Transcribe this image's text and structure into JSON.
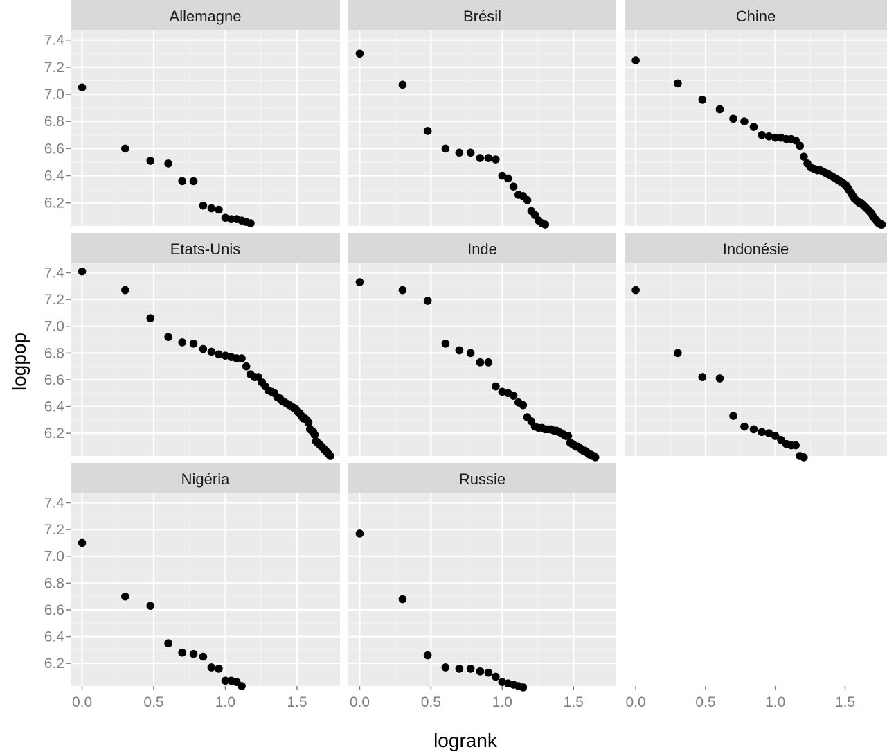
{
  "chart_data": {
    "type": "scatter",
    "layout": "facet-grid",
    "xlabel": "logrank",
    "ylabel": "logpop",
    "xlim": [
      -0.08,
      1.8
    ],
    "ylim": [
      6.03,
      7.47
    ],
    "x_ticks": [
      0.0,
      0.5,
      1.0,
      1.5
    ],
    "x_tick_labels": [
      "0.0",
      "0.5",
      "1.0",
      "1.5"
    ],
    "y_ticks": [
      6.2,
      6.4,
      6.6,
      6.8,
      7.0,
      7.2,
      7.4
    ],
    "y_tick_labels": [
      "6.2",
      "6.4",
      "6.6",
      "6.8",
      "7.0",
      "7.2",
      "7.4"
    ],
    "grid": true,
    "colors": {
      "panel_bg": "#ebebeb",
      "strip_bg": "#d9d9d9",
      "grid_major": "#ffffff",
      "point": "#000000"
    },
    "facets": [
      {
        "name": "Allemagne",
        "points": [
          [
            0.0,
            7.05
          ],
          [
            0.301,
            6.6
          ],
          [
            0.477,
            6.51
          ],
          [
            0.602,
            6.49
          ],
          [
            0.699,
            6.36
          ],
          [
            0.778,
            6.36
          ],
          [
            0.845,
            6.18
          ],
          [
            0.903,
            6.16
          ],
          [
            0.954,
            6.15
          ],
          [
            1.0,
            6.09
          ],
          [
            1.041,
            6.08
          ],
          [
            1.079,
            6.08
          ],
          [
            1.114,
            6.07
          ],
          [
            1.146,
            6.06
          ],
          [
            1.176,
            6.05
          ]
        ]
      },
      {
        "name": "Brésil",
        "points": [
          [
            0.0,
            7.3
          ],
          [
            0.301,
            7.07
          ],
          [
            0.477,
            6.73
          ],
          [
            0.602,
            6.6
          ],
          [
            0.699,
            6.57
          ],
          [
            0.778,
            6.57
          ],
          [
            0.845,
            6.53
          ],
          [
            0.903,
            6.53
          ],
          [
            0.954,
            6.52
          ],
          [
            1.0,
            6.4
          ],
          [
            1.041,
            6.38
          ],
          [
            1.079,
            6.32
          ],
          [
            1.114,
            6.26
          ],
          [
            1.146,
            6.25
          ],
          [
            1.176,
            6.22
          ],
          [
            1.204,
            6.14
          ],
          [
            1.23,
            6.11
          ],
          [
            1.255,
            6.07
          ],
          [
            1.279,
            6.05
          ],
          [
            1.301,
            6.04
          ]
        ]
      },
      {
        "name": "Chine",
        "points": [
          [
            0.0,
            7.25
          ],
          [
            0.301,
            7.08
          ],
          [
            0.477,
            6.96
          ],
          [
            0.602,
            6.89
          ],
          [
            0.699,
            6.82
          ],
          [
            0.778,
            6.8
          ],
          [
            0.845,
            6.76
          ],
          [
            0.903,
            6.7
          ],
          [
            0.954,
            6.69
          ],
          [
            1.0,
            6.68
          ],
          [
            1.041,
            6.68
          ],
          [
            1.079,
            6.67
          ],
          [
            1.114,
            6.67
          ],
          [
            1.146,
            6.66
          ],
          [
            1.176,
            6.62
          ],
          [
            1.204,
            6.54
          ],
          [
            1.23,
            6.49
          ],
          [
            1.255,
            6.46
          ],
          [
            1.279,
            6.45
          ],
          [
            1.301,
            6.44
          ],
          [
            1.322,
            6.44
          ],
          [
            1.342,
            6.43
          ],
          [
            1.362,
            6.42
          ],
          [
            1.38,
            6.41
          ],
          [
            1.398,
            6.4
          ],
          [
            1.415,
            6.39
          ],
          [
            1.431,
            6.38
          ],
          [
            1.447,
            6.37
          ],
          [
            1.462,
            6.36
          ],
          [
            1.477,
            6.35
          ],
          [
            1.491,
            6.34
          ],
          [
            1.505,
            6.33
          ],
          [
            1.519,
            6.31
          ],
          [
            1.531,
            6.29
          ],
          [
            1.544,
            6.27
          ],
          [
            1.556,
            6.25
          ],
          [
            1.568,
            6.23
          ],
          [
            1.58,
            6.22
          ],
          [
            1.591,
            6.21
          ],
          [
            1.602,
            6.2
          ],
          [
            1.613,
            6.2
          ],
          [
            1.623,
            6.19
          ],
          [
            1.633,
            6.18
          ],
          [
            1.643,
            6.17
          ],
          [
            1.653,
            6.16
          ],
          [
            1.663,
            6.15
          ],
          [
            1.672,
            6.14
          ],
          [
            1.681,
            6.13
          ],
          [
            1.69,
            6.12
          ],
          [
            1.699,
            6.1
          ],
          [
            1.708,
            6.09
          ],
          [
            1.716,
            6.08
          ],
          [
            1.724,
            6.07
          ],
          [
            1.732,
            6.06
          ],
          [
            1.74,
            6.05
          ],
          [
            1.748,
            6.05
          ],
          [
            1.756,
            6.04
          ],
          [
            1.763,
            6.04
          ]
        ]
      },
      {
        "name": "Etats-Unis",
        "points": [
          [
            0.0,
            7.41
          ],
          [
            0.301,
            7.27
          ],
          [
            0.477,
            7.06
          ],
          [
            0.602,
            6.92
          ],
          [
            0.699,
            6.88
          ],
          [
            0.778,
            6.87
          ],
          [
            0.845,
            6.83
          ],
          [
            0.903,
            6.81
          ],
          [
            0.954,
            6.79
          ],
          [
            1.0,
            6.78
          ],
          [
            1.041,
            6.77
          ],
          [
            1.079,
            6.76
          ],
          [
            1.114,
            6.76
          ],
          [
            1.146,
            6.7
          ],
          [
            1.176,
            6.64
          ],
          [
            1.204,
            6.62
          ],
          [
            1.23,
            6.62
          ],
          [
            1.255,
            6.58
          ],
          [
            1.279,
            6.55
          ],
          [
            1.301,
            6.52
          ],
          [
            1.322,
            6.51
          ],
          [
            1.342,
            6.5
          ],
          [
            1.362,
            6.47
          ],
          [
            1.38,
            6.46
          ],
          [
            1.398,
            6.44
          ],
          [
            1.415,
            6.43
          ],
          [
            1.431,
            6.42
          ],
          [
            1.447,
            6.41
          ],
          [
            1.462,
            6.4
          ],
          [
            1.477,
            6.39
          ],
          [
            1.491,
            6.38
          ],
          [
            1.505,
            6.36
          ],
          [
            1.519,
            6.35
          ],
          [
            1.531,
            6.33
          ],
          [
            1.544,
            6.31
          ],
          [
            1.556,
            6.31
          ],
          [
            1.568,
            6.3
          ],
          [
            1.58,
            6.28
          ],
          [
            1.591,
            6.23
          ],
          [
            1.602,
            6.22
          ],
          [
            1.613,
            6.21
          ],
          [
            1.623,
            6.19
          ],
          [
            1.633,
            6.14
          ],
          [
            1.643,
            6.13
          ],
          [
            1.653,
            6.12
          ],
          [
            1.663,
            6.11
          ],
          [
            1.672,
            6.1
          ],
          [
            1.681,
            6.09
          ],
          [
            1.69,
            6.08
          ],
          [
            1.699,
            6.07
          ],
          [
            1.708,
            6.06
          ],
          [
            1.716,
            6.05
          ],
          [
            1.724,
            6.04
          ],
          [
            1.732,
            6.03
          ]
        ]
      },
      {
        "name": "Inde",
        "points": [
          [
            0.0,
            7.33
          ],
          [
            0.301,
            7.27
          ],
          [
            0.477,
            7.19
          ],
          [
            0.602,
            6.87
          ],
          [
            0.699,
            6.82
          ],
          [
            0.778,
            6.8
          ],
          [
            0.845,
            6.73
          ],
          [
            0.903,
            6.73
          ],
          [
            0.954,
            6.55
          ],
          [
            1.0,
            6.51
          ],
          [
            1.041,
            6.5
          ],
          [
            1.079,
            6.48
          ],
          [
            1.114,
            6.43
          ],
          [
            1.146,
            6.41
          ],
          [
            1.176,
            6.32
          ],
          [
            1.204,
            6.29
          ],
          [
            1.23,
            6.25
          ],
          [
            1.255,
            6.24
          ],
          [
            1.279,
            6.24
          ],
          [
            1.301,
            6.23
          ],
          [
            1.322,
            6.23
          ],
          [
            1.342,
            6.23
          ],
          [
            1.362,
            6.22
          ],
          [
            1.38,
            6.22
          ],
          [
            1.398,
            6.21
          ],
          [
            1.415,
            6.2
          ],
          [
            1.431,
            6.19
          ],
          [
            1.447,
            6.18
          ],
          [
            1.462,
            6.18
          ],
          [
            1.477,
            6.13
          ],
          [
            1.491,
            6.12
          ],
          [
            1.505,
            6.11
          ],
          [
            1.519,
            6.1
          ],
          [
            1.531,
            6.1
          ],
          [
            1.544,
            6.09
          ],
          [
            1.556,
            6.08
          ],
          [
            1.568,
            6.07
          ],
          [
            1.58,
            6.07
          ],
          [
            1.591,
            6.06
          ],
          [
            1.602,
            6.05
          ],
          [
            1.613,
            6.04
          ],
          [
            1.623,
            6.04
          ],
          [
            1.633,
            6.03
          ],
          [
            1.643,
            6.03
          ],
          [
            1.653,
            6.02
          ]
        ]
      },
      {
        "name": "Indonésie",
        "points": [
          [
            0.0,
            7.27
          ],
          [
            0.301,
            6.8
          ],
          [
            0.477,
            6.62
          ],
          [
            0.602,
            6.61
          ],
          [
            0.699,
            6.33
          ],
          [
            0.778,
            6.25
          ],
          [
            0.845,
            6.23
          ],
          [
            0.903,
            6.21
          ],
          [
            0.954,
            6.2
          ],
          [
            1.0,
            6.18
          ],
          [
            1.041,
            6.15
          ],
          [
            1.079,
            6.12
          ],
          [
            1.114,
            6.11
          ],
          [
            1.146,
            6.11
          ],
          [
            1.176,
            6.03
          ],
          [
            1.204,
            6.02
          ]
        ]
      },
      {
        "name": "Nigéria",
        "points": [
          [
            0.0,
            7.1
          ],
          [
            0.301,
            6.7
          ],
          [
            0.477,
            6.63
          ],
          [
            0.602,
            6.35
          ],
          [
            0.699,
            6.28
          ],
          [
            0.778,
            6.27
          ],
          [
            0.845,
            6.25
          ],
          [
            0.903,
            6.17
          ],
          [
            0.954,
            6.16
          ],
          [
            1.0,
            6.07
          ],
          [
            1.041,
            6.07
          ],
          [
            1.079,
            6.06
          ],
          [
            1.114,
            6.03
          ]
        ]
      },
      {
        "name": "Russie",
        "points": [
          [
            0.0,
            7.17
          ],
          [
            0.301,
            6.68
          ],
          [
            0.477,
            6.26
          ],
          [
            0.602,
            6.17
          ],
          [
            0.699,
            6.16
          ],
          [
            0.778,
            6.16
          ],
          [
            0.845,
            6.14
          ],
          [
            0.903,
            6.13
          ],
          [
            0.954,
            6.1
          ],
          [
            1.0,
            6.06
          ],
          [
            1.041,
            6.05
          ],
          [
            1.079,
            6.04
          ],
          [
            1.114,
            6.03
          ],
          [
            1.146,
            6.02
          ]
        ]
      }
    ]
  }
}
